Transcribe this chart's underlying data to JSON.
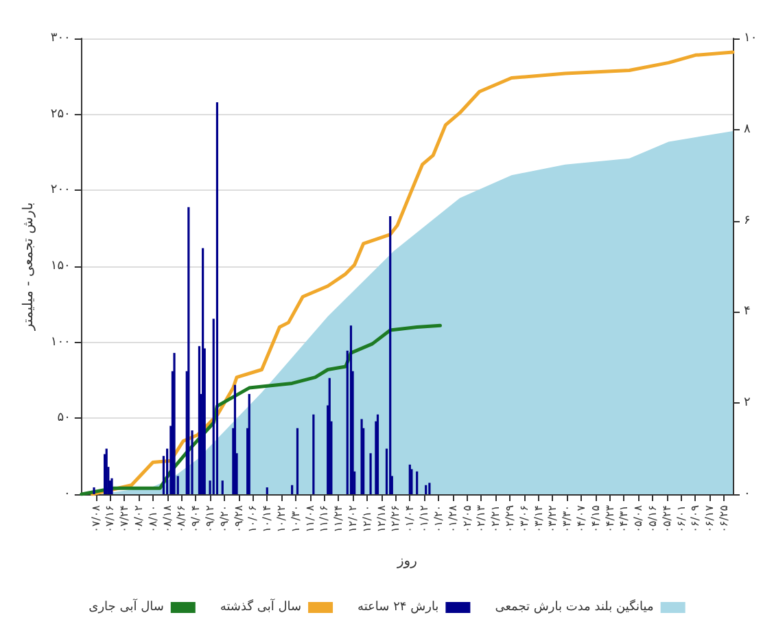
{
  "chart_data": {
    "type": "line",
    "xlabel": "روز",
    "ylabel": "بارش تجمعی - میلیمتر",
    "categories": [
      null,
      null,
      null,
      null,
      null,
      null,
      null,
      null,
      "۰۷/۰۸",
      null,
      null,
      null,
      null,
      null,
      null,
      null,
      "۰۷/۱۶",
      null,
      null,
      null,
      null,
      null,
      null,
      null,
      "۰۷/۲۴",
      null,
      null,
      null,
      null,
      null,
      null,
      null,
      "۰۸/۰۲",
      null,
      null,
      null,
      null,
      null,
      null,
      null,
      "۰۸/۱۰",
      null,
      null,
      null,
      null,
      null,
      null,
      null,
      "۰۸/۱۸",
      null,
      null,
      null,
      null,
      null,
      null,
      null,
      "۰۸/۲۶",
      null,
      null,
      null,
      null,
      null,
      null,
      null,
      "۰۹/۰۴",
      null,
      null,
      null,
      null,
      null,
      null,
      null,
      "۰۹/۱۲",
      null,
      null,
      null,
      null,
      null,
      null,
      null,
      "۰۹/۲۰",
      null,
      null,
      null,
      null,
      null,
      null,
      null,
      "۰۹/۲۸",
      null,
      null,
      null,
      null,
      null,
      null,
      null,
      "۱۰/۰۶",
      null,
      null,
      null,
      null,
      null,
      null,
      null,
      "۱۰/۱۴",
      null,
      null,
      null,
      null,
      null,
      null,
      null,
      "۱۰/۲۲",
      null,
      null,
      null,
      null,
      null,
      null,
      null,
      "۱۰/۳۰",
      null,
      null,
      null,
      null,
      null,
      null,
      null,
      "۱۱/۰۸",
      null,
      null,
      null,
      null,
      null,
      null,
      null,
      "۱۱/۱۶",
      null,
      null,
      null,
      null,
      null,
      null,
      null,
      "۱۱/۲۴",
      null,
      null,
      null,
      null,
      null,
      null,
      null,
      "۱۲/۰۲",
      null,
      null,
      null,
      null,
      null,
      null,
      null,
      "۱۲/۱۰",
      null,
      null,
      null,
      null,
      null,
      null,
      null,
      "۱۲/۱۸",
      null,
      null,
      null,
      null,
      null,
      null,
      null,
      "۱۲/۲۶",
      null,
      null,
      null,
      null,
      null,
      null,
      null,
      "۰۱/۰۴",
      null,
      null,
      null,
      null,
      null,
      null,
      null,
      "۰۱/۱۲",
      null,
      null,
      null,
      null,
      null,
      null,
      null,
      "۰۱/۲۰",
      null,
      null,
      null,
      null,
      null,
      null,
      null,
      "۰۱/۲۸",
      null,
      null,
      null,
      null,
      null,
      null,
      null,
      "۰۲/۰۵",
      null,
      null,
      null,
      null,
      null,
      null,
      null,
      "۰۲/۱۳",
      null,
      null,
      null,
      null,
      null,
      null,
      null,
      "۰۲/۲۱",
      null,
      null,
      null,
      null,
      null,
      null,
      null,
      "۰۲/۲۹",
      null,
      null,
      null,
      null,
      null,
      null,
      null,
      "۰۳/۰۶",
      null,
      null,
      null,
      null,
      null,
      null,
      null,
      "۰۳/۱۴",
      null,
      null,
      null,
      null,
      null,
      null,
      null,
      "۰۳/۲۲",
      null,
      null,
      null,
      null,
      null,
      null,
      null,
      "۰۳/۳۰",
      null,
      null,
      null,
      null,
      null,
      null,
      null,
      "۰۴/۰۷",
      null,
      null,
      null,
      null,
      null,
      null,
      null,
      "۰۴/۱۵",
      null,
      null,
      null,
      null,
      null,
      null,
      null,
      "۰۴/۲۳",
      null,
      null,
      null,
      null,
      null,
      null,
      null,
      "۰۴/۳۱",
      null,
      null,
      null,
      null,
      null,
      null,
      null,
      "۰۵/۰۸",
      null,
      null,
      null,
      null,
      null,
      null,
      null,
      "۰۵/۱۶",
      null,
      null,
      null,
      null,
      null,
      null,
      null,
      "۰۵/۲۴",
      null,
      null,
      null,
      null,
      null,
      null,
      null,
      "۰۶/۰۱",
      null,
      null,
      null,
      null,
      null,
      null,
      null,
      "۰۶/۰۹",
      null,
      null,
      null,
      null,
      null,
      null,
      null,
      "۰۶/۱۷",
      null,
      null,
      null,
      null,
      null,
      null,
      null,
      "۰۶/۲۵",
      null,
      null,
      null,
      null,
      null
    ],
    "ylim": [
      0,
      300
    ],
    "yticks": [
      {
        "value": 0,
        "label": "۰"
      },
      {
        "value": 50,
        "label": "۵۰"
      },
      {
        "value": 100,
        "label": "۱۰۰"
      },
      {
        "value": 150,
        "label": "۱۵۰"
      },
      {
        "value": 200,
        "label": "۲۰۰"
      },
      {
        "value": 250,
        "label": "۲۵۰"
      },
      {
        "value": 300,
        "label": "۳۰۰"
      }
    ],
    "y2lim": [
      0,
      10
    ],
    "y2ticks": [
      {
        "value": 0,
        "label": "۰"
      },
      {
        "value": 2,
        "label": "۲"
      },
      {
        "value": 4,
        "label": "۴"
      },
      {
        "value": 6,
        "label": "۶"
      },
      {
        "value": 8,
        "label": "۸"
      },
      {
        "value": 10,
        "label": "۱۰"
      }
    ],
    "grid": "y",
    "legend": "bottom",
    "marker": "none",
    "line_style": "solid",
    "series": [
      {
        "name": "میانگین بلند مدت بارش تجمعی",
        "type": "area",
        "color": "#a9d8e6",
        "values": [
          0,
          null,
          null,
          null,
          null,
          null,
          null,
          null,
          null,
          null,
          0,
          null,
          null,
          null,
          null,
          null,
          null,
          null,
          null,
          null,
          null,
          null,
          null,
          null,
          null,
          null,
          null,
          null,
          null,
          null,
          null,
          null,
          null,
          null,
          null,
          null,
          null,
          null,
          null,
          null,
          5,
          null,
          null,
          null,
          null,
          null,
          null,
          null,
          null,
          null,
          10,
          null,
          null,
          null,
          null,
          null,
          null,
          null,
          null,
          null,
          null,
          null,
          null,
          null,
          null,
          23,
          null,
          null,
          null,
          null,
          null,
          null,
          null,
          null,
          null,
          null,
          null,
          null,
          null,
          null,
          null,
          null,
          null,
          null,
          null,
          null,
          null,
          null,
          null,
          null,
          null,
          null,
          null,
          null,
          null,
          null,
          null,
          null,
          null,
          null,
          null,
          67,
          null,
          null,
          null,
          null,
          null,
          null,
          null,
          null,
          null,
          null,
          null,
          null,
          null,
          null,
          null,
          null,
          null,
          null,
          null,
          null,
          null,
          null,
          null,
          null,
          null,
          null,
          null,
          null,
          null,
          null,
          null,
          null,
          null,
          null,
          null,
          null,
          117,
          null,
          null,
          null,
          null,
          null,
          null,
          null,
          null,
          null,
          null,
          null,
          null,
          null,
          null,
          null,
          null,
          null,
          null,
          null,
          null,
          null,
          null,
          null,
          null,
          null,
          null,
          null,
          null,
          null,
          null,
          null,
          null,
          null,
          null,
          null,
          null,
          160,
          null,
          null,
          null,
          null,
          null,
          null,
          null,
          null,
          null,
          null,
          null,
          null,
          null,
          null,
          null,
          null,
          null,
          null,
          null,
          null,
          null,
          null,
          null,
          null,
          null,
          null,
          null,
          null,
          null,
          null,
          null,
          null,
          null,
          null,
          null,
          null,
          195,
          null,
          null,
          null,
          null,
          null,
          null,
          null,
          null,
          null,
          null,
          null,
          null,
          null,
          null,
          null,
          null,
          null,
          null,
          null,
          null,
          null,
          null,
          null,
          null,
          null,
          null,
          null,
          null,
          210,
          null,
          null,
          null,
          null,
          null,
          null,
          null,
          null,
          null,
          null,
          null,
          null,
          null,
          null,
          null,
          null,
          null,
          null,
          null,
          null,
          null,
          null,
          null,
          null,
          null,
          null,
          null,
          null,
          null,
          217,
          null,
          null,
          null,
          null,
          null,
          null,
          null,
          null,
          null,
          null,
          null,
          null,
          null,
          null,
          null,
          null,
          null,
          null,
          null,
          null,
          null,
          null,
          null,
          null,
          null,
          null,
          null,
          null,
          null,
          null,
          null,
          null,
          null,
          null,
          null,
          221,
          null,
          null,
          null,
          null,
          null,
          null,
          null,
          null,
          null,
          null,
          null,
          null,
          null,
          null,
          null,
          null,
          null,
          null,
          null,
          null,
          null,
          232,
          null,
          null,
          null,
          null,
          null,
          null,
          null,
          null,
          null,
          null,
          null,
          null,
          null,
          null,
          null,
          null,
          null,
          null,
          null,
          null,
          null,
          null,
          null,
          null,
          null,
          null,
          null,
          null,
          null,
          null,
          null,
          null,
          null,
          null,
          null,
          239
        ]
      },
      {
        "name": "بارش ۲۴ ساعته",
        "type": "bar",
        "axis": "y2",
        "color": "#00008b",
        "values": [
          null,
          null,
          null,
          null,
          null,
          null,
          null,
          0.15,
          null,
          null,
          null,
          null,
          null,
          0.88,
          1.0,
          0.6,
          0.3,
          0.35,
          null,
          null,
          null,
          null,
          null,
          null,
          null,
          null,
          null,
          null,
          null,
          null,
          null,
          null,
          null,
          null,
          null,
          null,
          null,
          null,
          null,
          null,
          null,
          null,
          null,
          null,
          null,
          null,
          0.84,
          null,
          1.0,
          null,
          1.5,
          2.7,
          3.1,
          null,
          0.4,
          null,
          null,
          null,
          null,
          2.7,
          6.3,
          null,
          1.4,
          null,
          null,
          null,
          3.25,
          2.2,
          5.4,
          3.2,
          null,
          null,
          0.3,
          null,
          3.85,
          null,
          8.6,
          null,
          null,
          0.3,
          null,
          null,
          null,
          null,
          null,
          1.45,
          2.4,
          0.9,
          null,
          null,
          null,
          null,
          null,
          1.45,
          2.2,
          null,
          null,
          null,
          null,
          null,
          null,
          null,
          null,
          null,
          0.15,
          null,
          null,
          null,
          null,
          null,
          null,
          null,
          null,
          null,
          null,
          null,
          null,
          null,
          0.2,
          null,
          null,
          1.45,
          null,
          null,
          null,
          null,
          null,
          null,
          null,
          null,
          1.75,
          null,
          null,
          null,
          null,
          null,
          null,
          null,
          1.95,
          2.55,
          1.6,
          null,
          null,
          null,
          null,
          null,
          null,
          null,
          null,
          3.15,
          null,
          3.7,
          2.7,
          0.5,
          null,
          null,
          null,
          1.65,
          1.45,
          null,
          null,
          null,
          0.9,
          null,
          null,
          1.6,
          1.75,
          null,
          null,
          null,
          null,
          1.0,
          null,
          6.1,
          0.4,
          null,
          null,
          null,
          null,
          null,
          null,
          null,
          null,
          null,
          0.65,
          0.55,
          null,
          null,
          0.5,
          null,
          null,
          null,
          null,
          0.2,
          null,
          0.25,
          null,
          null,
          null,
          null,
          null,
          null,
          null,
          null,
          null,
          null,
          null,
          null,
          null,
          null,
          null,
          null,
          null,
          null,
          null,
          null,
          null,
          null,
          null,
          null,
          null,
          null,
          null,
          null,
          null,
          null,
          null,
          null,
          null,
          null,
          null,
          null,
          null,
          null,
          null,
          null,
          null,
          null,
          null,
          null,
          null,
          null,
          null,
          null,
          null,
          null,
          null,
          null,
          null,
          null,
          null,
          null,
          null,
          null,
          null,
          null,
          null,
          null,
          null,
          null,
          null,
          null,
          null,
          null,
          null,
          null,
          null,
          null,
          null,
          null,
          null,
          null,
          null,
          null,
          null,
          null,
          null,
          null,
          null,
          null,
          null,
          null,
          null,
          null,
          null,
          null,
          null,
          null,
          null,
          null,
          null,
          null,
          null,
          null,
          null,
          null,
          null,
          null,
          null,
          null,
          null,
          null,
          null,
          null,
          null,
          null,
          null,
          null,
          null,
          null,
          null,
          null,
          null,
          null,
          null,
          null,
          null,
          null,
          null,
          null,
          null,
          null,
          null,
          null,
          null,
          null,
          null,
          null,
          null,
          null,
          null,
          null,
          null,
          null,
          null,
          null,
          null,
          null,
          null,
          null,
          null,
          null,
          null,
          null,
          null,
          null,
          null,
          null,
          null,
          null,
          null,
          null,
          null,
          null,
          null,
          null,
          null,
          null,
          null,
          null,
          null,
          null,
          null,
          null,
          null,
          null
        ]
      },
      {
        "name": "سال آبی گذشته",
        "color": "#f0a82c",
        "values": [
          null,
          null,
          null,
          null,
          null,
          null,
          0,
          null,
          null,
          null,
          null,
          null,
          null,
          null,
          null,
          null,
          null,
          null,
          null,
          null,
          null,
          null,
          null,
          null,
          null,
          null,
          null,
          null,
          6,
          null,
          null,
          null,
          null,
          null,
          null,
          null,
          null,
          null,
          null,
          null,
          21,
          null,
          null,
          null,
          null,
          null,
          null,
          null,
          null,
          null,
          22,
          null,
          null,
          null,
          null,
          null,
          null,
          35,
          null,
          null,
          null,
          null,
          null,
          null,
          null,
          39,
          null,
          null,
          null,
          null,
          null,
          null,
          null,
          null,
          null,
          null,
          52,
          null,
          null,
          null,
          null,
          null,
          null,
          null,
          null,
          70,
          null,
          77,
          null,
          null,
          null,
          null,
          null,
          null,
          null,
          null,
          null,
          null,
          null,
          null,
          null,
          82,
          null,
          null,
          null,
          null,
          null,
          null,
          null,
          null,
          null,
          110,
          null,
          null,
          null,
          null,
          113,
          null,
          null,
          null,
          null,
          null,
          null,
          null,
          130,
          null,
          null,
          null,
          null,
          null,
          null,
          null,
          null,
          null,
          null,
          null,
          null,
          null,
          137,
          null,
          null,
          null,
          null,
          null,
          null,
          null,
          null,
          null,
          145,
          null,
          null,
          null,
          null,
          151,
          null,
          null,
          null,
          null,
          165,
          null,
          null,
          null,
          null,
          null,
          null,
          null,
          null,
          null,
          null,
          null,
          null,
          null,
          null,
          171,
          null,
          null,
          null,
          177,
          null,
          null,
          null,
          null,
          null,
          null,
          null,
          200,
          null,
          null,
          null,
          null,
          null,
          217,
          null,
          null,
          null,
          null,
          null,
          223,
          null,
          null,
          null,
          null,
          null,
          null,
          243,
          null,
          null,
          null,
          null,
          null,
          null,
          null,
          251,
          null,
          null,
          null,
          null,
          null,
          null,
          null,
          null,
          null,
          null,
          265,
          null,
          null,
          null,
          null,
          null,
          null,
          null,
          null,
          null,
          null,
          null,
          null,
          null,
          null,
          null,
          null,
          null,
          274,
          null,
          null,
          null,
          null,
          null,
          null,
          null,
          null,
          null,
          null,
          null,
          null,
          null,
          null,
          null,
          null,
          null,
          null,
          null,
          null,
          null,
          null,
          null,
          null,
          null,
          null,
          null,
          null,
          null,
          277,
          null,
          null,
          null,
          null,
          null,
          null,
          null,
          null,
          null,
          null,
          null,
          null,
          null,
          null,
          null,
          null,
          null,
          null,
          null,
          null,
          null,
          null,
          null,
          null,
          null,
          null,
          null,
          null,
          null,
          null,
          null,
          null,
          null,
          null,
          null,
          279,
          null,
          null,
          null,
          null,
          null,
          null,
          null,
          null,
          null,
          null,
          null,
          null,
          null,
          null,
          null,
          null,
          null,
          null,
          null,
          null,
          null,
          284,
          null,
          null,
          null,
          null,
          null,
          null,
          null,
          null,
          null,
          null,
          null,
          null,
          null,
          null,
          289,
          null,
          null,
          null,
          null,
          null,
          null,
          null,
          null,
          null,
          null,
          null,
          null,
          null,
          null,
          null,
          null,
          null,
          null,
          null,
          null,
          291
        ]
      },
      {
        "name": "سال آبی جاری",
        "color": "#1e7b24",
        "values": [
          0,
          null,
          null,
          null,
          null,
          null,
          null,
          null,
          null,
          null,
          null,
          null,
          null,
          null,
          null,
          null,
          null,
          null,
          4,
          null,
          null,
          null,
          null,
          null,
          null,
          null,
          null,
          null,
          null,
          null,
          null,
          null,
          null,
          null,
          null,
          null,
          null,
          null,
          null,
          null,
          null,
          null,
          null,
          null,
          4,
          null,
          null,
          null,
          null,
          null,
          15,
          null,
          null,
          null,
          null,
          null,
          null,
          null,
          null,
          null,
          29,
          null,
          null,
          null,
          null,
          null,
          null,
          null,
          null,
          null,
          null,
          null,
          null,
          null,
          47,
          null,
          58,
          null,
          null,
          null,
          null,
          null,
          null,
          null,
          null,
          64,
          null,
          null,
          null,
          null,
          null,
          null,
          null,
          null,
          70,
          null,
          null,
          null,
          null,
          null,
          null,
          null,
          null,
          null,
          null,
          null,
          null,
          null,
          null,
          null,
          null,
          null,
          null,
          null,
          null,
          null,
          null,
          null,
          73,
          null,
          null,
          null,
          null,
          null,
          null,
          null,
          null,
          null,
          null,
          null,
          null,
          77,
          null,
          null,
          null,
          null,
          null,
          null,
          82,
          null,
          null,
          null,
          null,
          null,
          null,
          null,
          null,
          null,
          84,
          null,
          null,
          93,
          null,
          null,
          null,
          null,
          null,
          null,
          null,
          null,
          null,
          null,
          null,
          99,
          null,
          null,
          null,
          null,
          null,
          null,
          null,
          null,
          null,
          108,
          null,
          null,
          null,
          null,
          null,
          null,
          null,
          null,
          null,
          null,
          null,
          null,
          null,
          null,
          110,
          null,
          null,
          null,
          null,
          null,
          null,
          null,
          null,
          null,
          null,
          null,
          null,
          111,
          null,
          null,
          null,
          null,
          null,
          null,
          null,
          null,
          null,
          null,
          null,
          null,
          null,
          null,
          null,
          null,
          null,
          null,
          null,
          null,
          null,
          null,
          null,
          null,
          null,
          null,
          null,
          null,
          null,
          null,
          null,
          null,
          null,
          null,
          null,
          null,
          null,
          null,
          null,
          null,
          null,
          null,
          null,
          null,
          null,
          null,
          null,
          null,
          null,
          null,
          null,
          null,
          null,
          null,
          null,
          null,
          null,
          null,
          null,
          null,
          null,
          null,
          null,
          null,
          null,
          null,
          null,
          null,
          null,
          null,
          null,
          null,
          null,
          null,
          null,
          null,
          null,
          null,
          null,
          null,
          null,
          null,
          null,
          null,
          null,
          null,
          null,
          null,
          null,
          null,
          null,
          null,
          null,
          null,
          null,
          null,
          null,
          null,
          null,
          null,
          null,
          null,
          null,
          null,
          null,
          null,
          null,
          null,
          null,
          null,
          null,
          null,
          null,
          null,
          null,
          null,
          null,
          null,
          null,
          null,
          null,
          null,
          null,
          null,
          null,
          null,
          null,
          null,
          null,
          null,
          null,
          null,
          null,
          null,
          null,
          null,
          null,
          null,
          null,
          null,
          null,
          null,
          null,
          null,
          null,
          null,
          null,
          null,
          null,
          null,
          null,
          null,
          null,
          null,
          null,
          null,
          null,
          null,
          null,
          null,
          null,
          null,
          null,
          null
        ]
      }
    ]
  }
}
